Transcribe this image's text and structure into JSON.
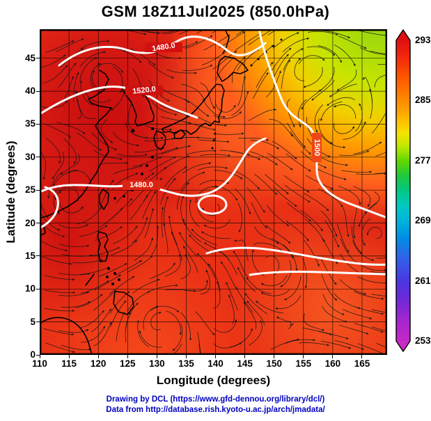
{
  "title": "GSM 18Z11Jul2025 (850.0hPa)",
  "axes": {
    "x_label": "Longitude (degrees)",
    "y_label": "Latitude  (degrees)",
    "x_ticks": [
      "110",
      "115",
      "120",
      "125",
      "130",
      "135",
      "140",
      "145",
      "150",
      "155",
      "160",
      "165"
    ],
    "y_ticks": [
      "0",
      "5",
      "10",
      "15",
      "20",
      "25",
      "30",
      "35",
      "40",
      "45"
    ]
  },
  "colorbar": {
    "ticks_top_to_bottom": [
      "293",
      "285",
      "277",
      "269",
      "261",
      "253"
    ],
    "top_arrow_color": "#df0f10",
    "bottom_arrow_color": "#c92cc6"
  },
  "contours": {
    "labels": [
      "1480.0",
      "1520.0",
      "1480.0",
      "1500"
    ]
  },
  "footer": {
    "line1": "Drawing by DCL (https://www.gfd-dennou.org/library/dcl/)",
    "line2": "Data from http://database.rish.kyoto-u.ac.jp/arch/jmadata/"
  },
  "chart_data": {
    "type": "heatmap",
    "title": "GSM 18Z11Jul2025 (850.0hPa)",
    "xlabel": "Longitude (degrees)",
    "ylabel": "Latitude  (degrees)",
    "xlim": [
      110,
      169.4
    ],
    "ylim": [
      0,
      49.4
    ],
    "x_ticks": [
      110,
      115,
      120,
      125,
      130,
      135,
      140,
      145,
      150,
      155,
      160,
      165
    ],
    "y_ticks": [
      0,
      5,
      10,
      15,
      20,
      25,
      30,
      35,
      40,
      45
    ],
    "grid": true,
    "colorbar": {
      "orientation": "vertical",
      "position": "right",
      "tick_values": [
        253,
        261,
        269,
        277,
        285,
        293
      ],
      "has_overflow_arrows": true,
      "colors_low_to_high": [
        "magenta",
        "purple",
        "blue",
        "cyan",
        "green",
        "yellow-green",
        "yellow",
        "orange",
        "red"
      ]
    },
    "layers": [
      {
        "layer": "shaded field",
        "description": "mostly 287-293 (red/orange) over the whole domain; cooler 277-284 (yellow to green) pocket in the northeast corner roughly 145-169E / 37-49N; darker red maxima over northwest (115-125E, 25-45N)"
      },
      {
        "layer": "white contours",
        "labeled_values": [
          1480.0,
          1520.0,
          1480.0,
          1500
        ],
        "description": "smooth white height-style contours; small closed contour centered near 139E, 23N; long contour running from the top edge near 147E down and east to the right edge"
      },
      {
        "layer": "streamlines",
        "description": "dense black wind streamlines with arrowheads covering the map; cyclonic swirl coincident with the closed contour near 139E, 23N"
      },
      {
        "layer": "coastlines",
        "description": "black coastlines: Japan, Korea, east China coast, Taiwan, Philippines, Sakhalin, Kuril and Ryukyu island chains"
      }
    ]
  }
}
